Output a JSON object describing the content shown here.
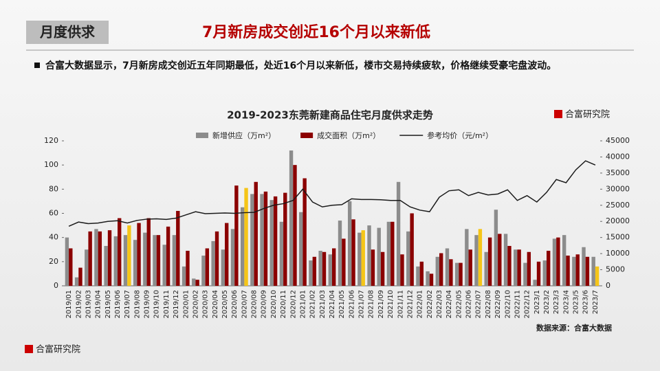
{
  "header": {
    "tag": "月度供求",
    "title": "7月新房成交创近16个月以来新低",
    "summary": "合富大数据显示，7月新房成交创近五年同期最低，处近16个月以来新低，楼市交易持续疲软，价格继续受豪宅盘波动。"
  },
  "brand": "合富研究院",
  "chart_data": {
    "type": "bar_line",
    "title": "2019-2023东莞新建商品住宅月度供求走势",
    "source": "数据来源：合富大数据",
    "categories": [
      "2019/01",
      "2019/02",
      "2019/03",
      "2019/04",
      "2019/05",
      "2019/06",
      "2019/07",
      "2019/08",
      "2019/09",
      "2019/10",
      "2019/11",
      "2019/12",
      "2020/01",
      "2020/02",
      "2020/03",
      "2020/04",
      "2020/05",
      "2020/06",
      "2020/07",
      "2020/08",
      "2020/09",
      "2020/10",
      "2020/11",
      "2020/12",
      "2021/01",
      "2021/02",
      "2021/03",
      "2021/04",
      "2021/05",
      "2021/06",
      "2021/07",
      "2021/08",
      "2021/09",
      "2021/10",
      "2021/11",
      "2021/12",
      "2022/01",
      "2022/02",
      "2022/03",
      "2022/04",
      "2022/05",
      "2022/06",
      "2022/07",
      "2022/08",
      "2022/09",
      "2022/10",
      "2022/11",
      "2022/12",
      "2023/1",
      "2023/2",
      "2023/3",
      "2023/4",
      "2023/5",
      "2023/6",
      "2023/7"
    ],
    "series": [
      {
        "name": "新增供应（万m²）",
        "kind": "bar",
        "color": "#8c8c8c",
        "values": [
          40,
          7,
          30,
          47,
          33,
          41,
          42,
          38,
          44,
          42,
          34,
          42,
          16,
          6,
          25,
          37,
          30,
          47,
          65,
          76,
          76,
          71,
          53,
          112,
          61,
          21,
          29,
          26,
          54,
          70,
          44,
          50,
          48,
          53,
          86,
          45,
          16,
          12,
          24,
          31,
          19,
          47,
          42,
          28,
          63,
          43,
          30,
          19,
          5,
          21,
          39,
          42,
          24,
          32,
          24
        ]
      },
      {
        "name": "成交面积（万m²）",
        "kind": "bar",
        "color": "#8b0000",
        "highlight_color": "#f5c518",
        "highlight": [
          6,
          18,
          30,
          42,
          54
        ],
        "values": [
          31,
          15,
          45,
          45,
          46,
          56,
          50,
          52,
          56,
          42,
          49,
          62,
          29,
          5,
          31,
          45,
          52,
          83,
          81,
          86,
          78,
          74,
          77,
          100,
          89,
          24,
          28,
          31,
          39,
          55,
          46,
          30,
          28,
          53,
          26,
          60,
          20,
          10,
          27,
          22,
          19,
          30,
          47,
          40,
          43,
          33,
          30,
          28,
          20,
          29,
          40,
          25,
          26,
          24,
          16
        ]
      },
      {
        "name": "参考均价（元/m²）",
        "kind": "line",
        "axis": "y2",
        "color": "#1a1a1a",
        "values": [
          18500,
          19800,
          19300,
          19500,
          20000,
          20200,
          19500,
          20300,
          20700,
          20800,
          20600,
          21000,
          22000,
          23000,
          22400,
          22500,
          22600,
          22500,
          22700,
          22800,
          24000,
          25000,
          25500,
          26500,
          30000,
          26000,
          24500,
          25000,
          25200,
          27000,
          26800,
          26800,
          26700,
          26500,
          26500,
          24500,
          23500,
          23000,
          27500,
          29500,
          29800,
          28000,
          29000,
          28200,
          28500,
          29800,
          26500,
          28000,
          26000,
          29000,
          33000,
          32000,
          36000,
          38800,
          37500
        ]
      }
    ],
    "ylim": [
      0,
      120
    ],
    "yticks": [
      0,
      20,
      40,
      60,
      80,
      100,
      120
    ],
    "y2lim": [
      0,
      45000
    ],
    "y2ticks": [
      0,
      5000,
      10000,
      15000,
      20000,
      25000,
      30000,
      35000,
      40000,
      45000
    ]
  }
}
